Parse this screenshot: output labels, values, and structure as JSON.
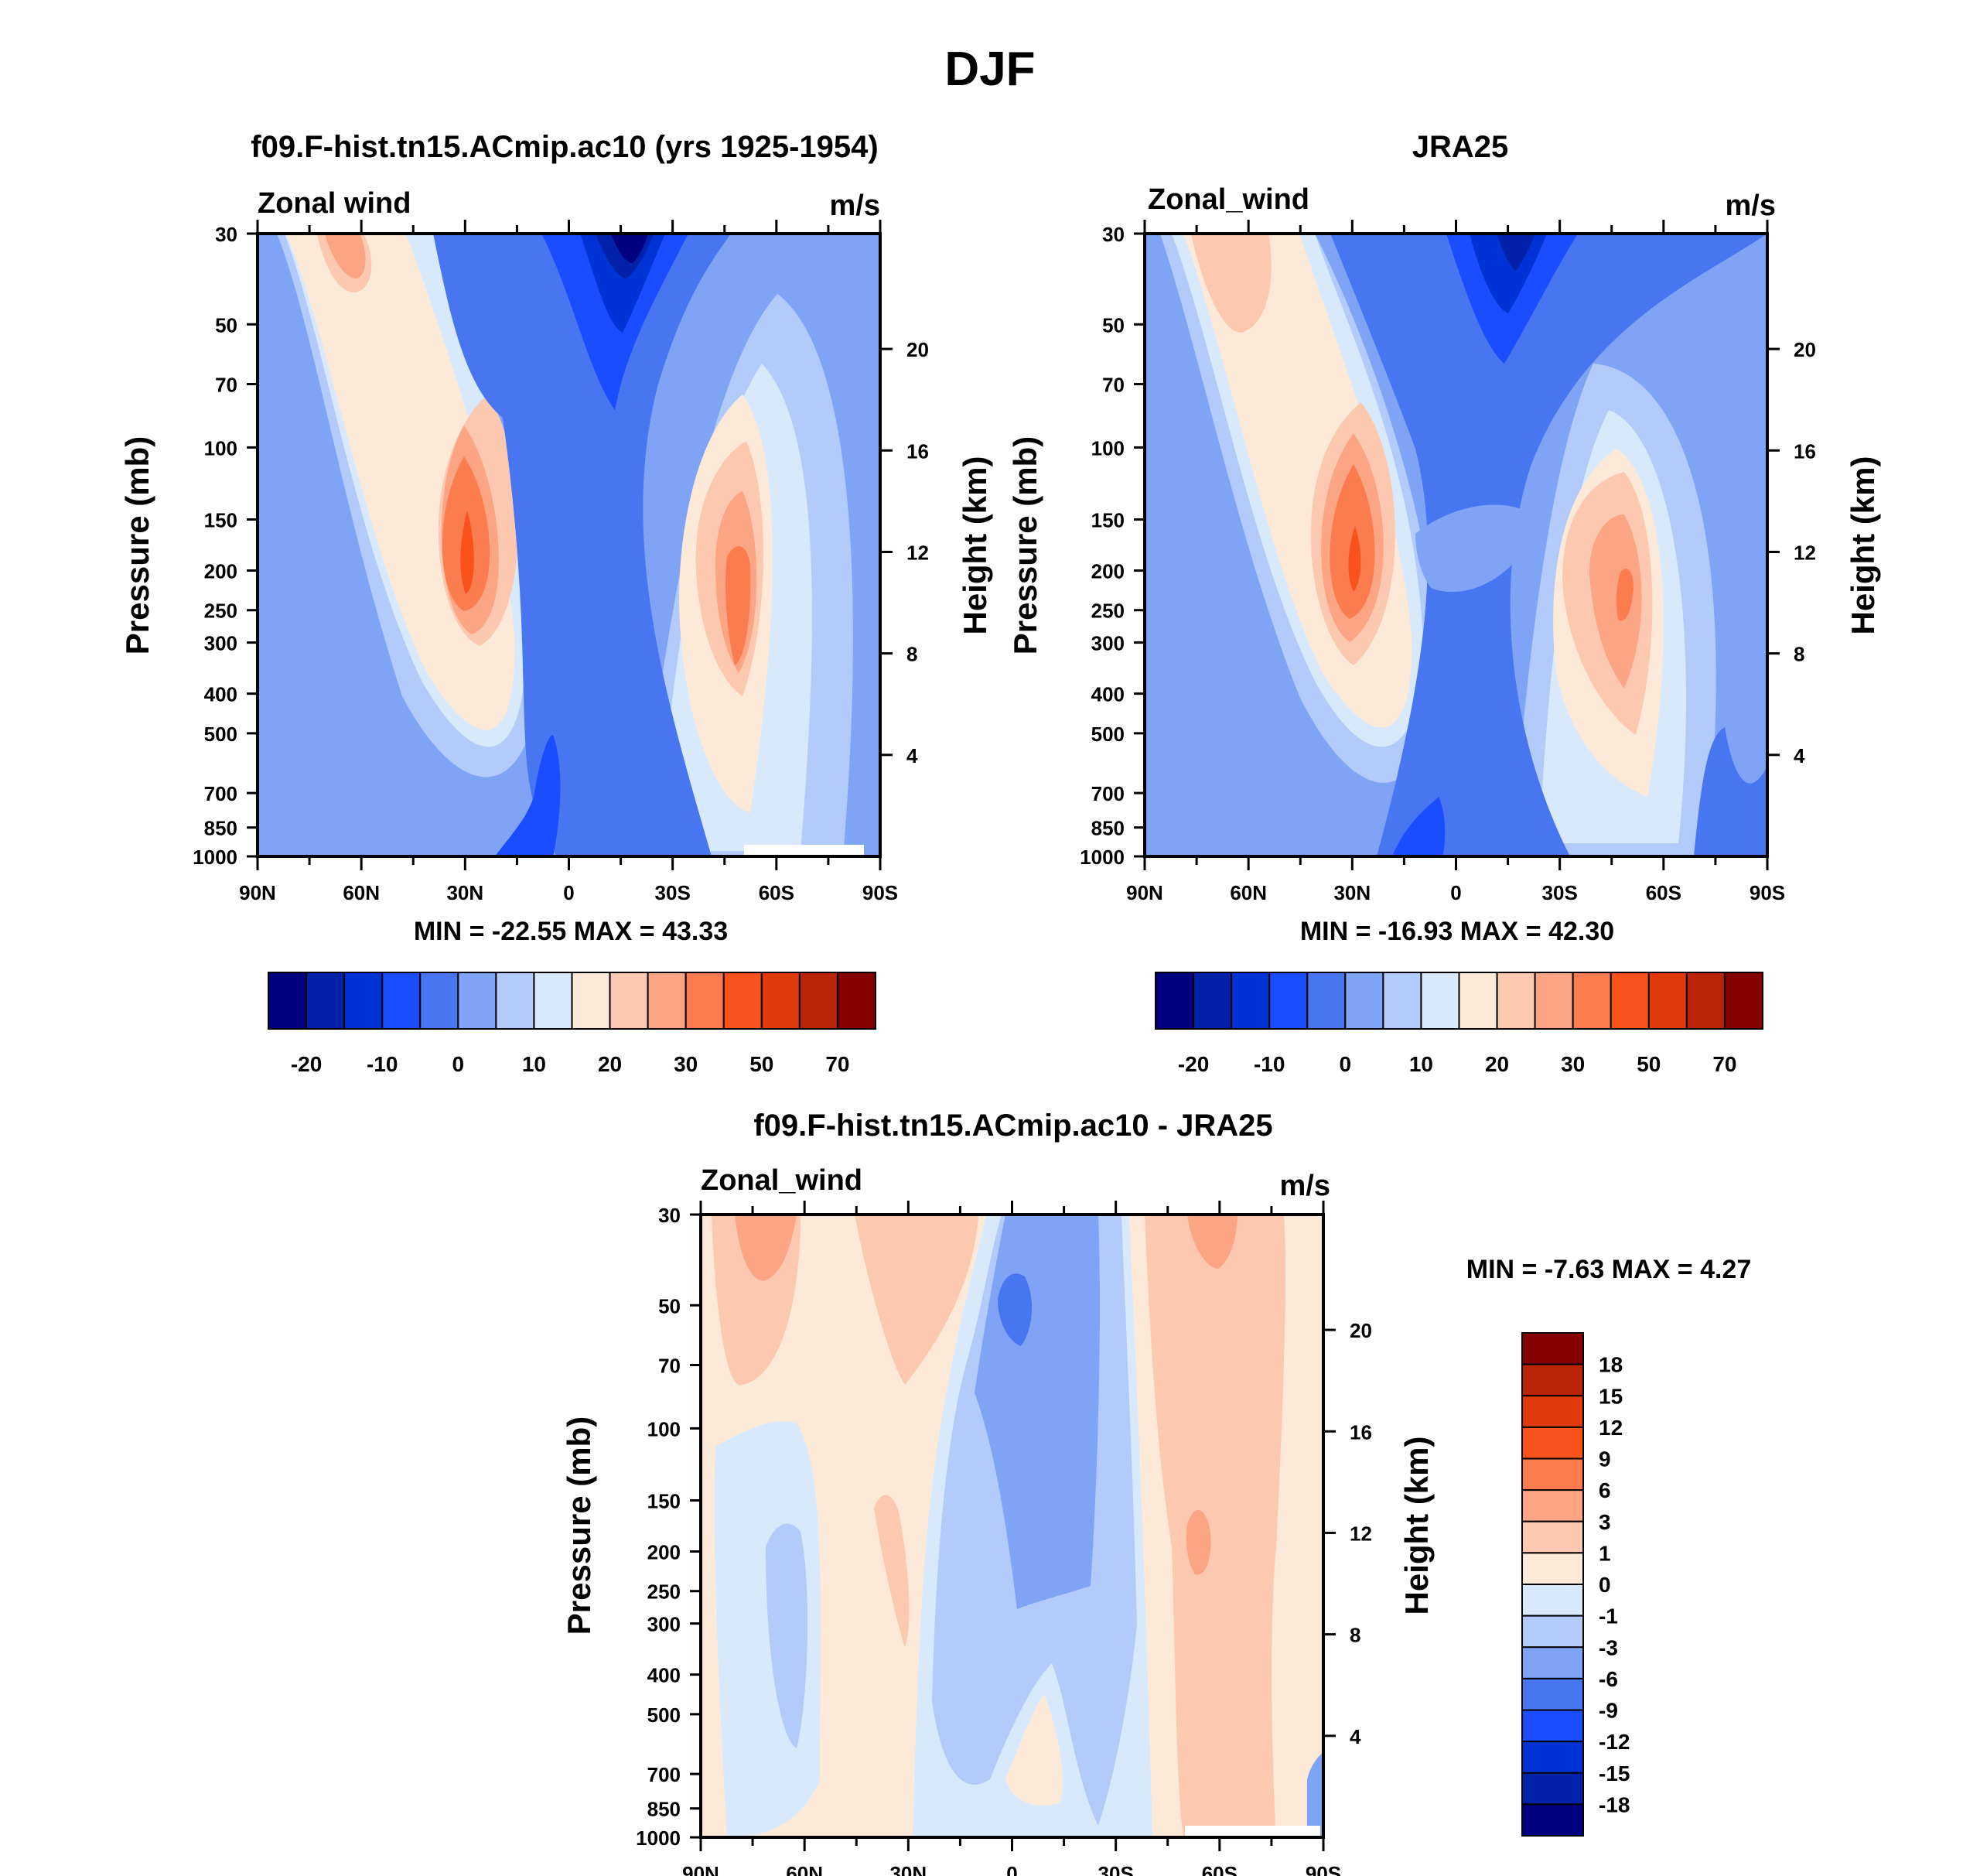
{
  "figure_title": "DJF",
  "chart_data": [
    {
      "type": "heatmap",
      "panel": "model",
      "title": "f09.F-hist.tn15.ACmip.ac10 (yrs 1925-1954)",
      "left_label": "Zonal wind",
      "right_label": "m/s",
      "ylabel": "Pressure (mb)",
      "ylabel_right": "Height (km)",
      "x_ticks": [
        "90N",
        "60N",
        "30N",
        "0",
        "30S",
        "60S",
        "90S"
      ],
      "x_range": [
        90,
        -90
      ],
      "y_ticks": [
        30,
        50,
        70,
        100,
        150,
        200,
        250,
        300,
        400,
        500,
        700,
        850,
        1000
      ],
      "y_range_mb": [
        1000,
        30
      ],
      "height_ticks_km": [
        4,
        8,
        12,
        16,
        20
      ],
      "min_max_text": "MIN = -22.55  MAX =  43.33",
      "min": -22.55,
      "max": 43.33,
      "colorbar_labels": [
        "-20",
        "-10",
        "0",
        "10",
        "20",
        "30",
        "50",
        "70"
      ],
      "features": [
        {
          "kind": "jet",
          "lat": 30,
          "p_mb": 200,
          "value": 43.33
        },
        {
          "kind": "jet",
          "lat": -48,
          "p_mb": 220,
          "value": 38
        },
        {
          "kind": "easterly",
          "lat": -15,
          "p_mb": 30,
          "value": -22.55
        }
      ]
    },
    {
      "type": "heatmap",
      "panel": "obs",
      "title": "JRA25",
      "left_label": "Zonal_wind",
      "right_label": "m/s",
      "ylabel": "Pressure (mb)",
      "ylabel_right": "Height (km)",
      "x_ticks": [
        "90N",
        "60N",
        "30N",
        "0",
        "30S",
        "60S",
        "90S"
      ],
      "x_range": [
        90,
        -90
      ],
      "y_ticks": [
        30,
        50,
        70,
        100,
        150,
        200,
        250,
        300,
        400,
        500,
        700,
        850,
        1000
      ],
      "y_range_mb": [
        1000,
        30
      ],
      "height_ticks_km": [
        4,
        8,
        12,
        16,
        20
      ],
      "min_max_text": "MIN = -16.93  MAX =  42.30",
      "min": -16.93,
      "max": 42.3,
      "colorbar_labels": [
        "-20",
        "-10",
        "0",
        "10",
        "20",
        "30",
        "50",
        "70"
      ],
      "features": [
        {
          "kind": "jet",
          "lat": 30,
          "p_mb": 200,
          "value": 42.3
        },
        {
          "kind": "jet",
          "lat": -48,
          "p_mb": 260,
          "value": 36
        },
        {
          "kind": "easterly",
          "lat": -15,
          "p_mb": 30,
          "value": -16.93
        }
      ]
    },
    {
      "type": "heatmap",
      "panel": "difference",
      "title": "f09.F-hist.tn15.ACmip.ac10 - JRA25",
      "left_label": "Zonal_wind",
      "right_label": "m/s",
      "ylabel": "Pressure (mb)",
      "ylabel_right": "Height (km)",
      "x_ticks": [
        "90N",
        "60N",
        "30N",
        "0",
        "30S",
        "60S",
        "90S"
      ],
      "x_range": [
        90,
        -90
      ],
      "y_ticks": [
        30,
        50,
        70,
        100,
        150,
        200,
        250,
        300,
        400,
        500,
        700,
        850,
        1000
      ],
      "y_range_mb": [
        1000,
        30
      ],
      "height_ticks_km": [
        4,
        8,
        12,
        16,
        20
      ],
      "min_max_text": "MIN =  -7.63  MAX =   4.27",
      "min": -7.63,
      "max": 4.27,
      "colorbar_labels": [
        "18",
        "15",
        "12",
        "9",
        "6",
        "3",
        "1",
        "0",
        "-1",
        "-3",
        "-6",
        "-9",
        "-12",
        "-15",
        "-18"
      ]
    }
  ],
  "colors": {
    "abs_fills": [
      "#000080",
      "#0021a8",
      "#0033d6",
      "#1a4dff",
      "#4876f0",
      "#80a4f5",
      "#b3cbfa",
      "#d9e9fc",
      "#fde9d8",
      "#fcc9b0",
      "#fba585",
      "#fb7c4e",
      "#fa521d",
      "#e03a0c",
      "#b82405",
      "#850000"
    ],
    "diff_fills": [
      "#850000",
      "#b82405",
      "#e03a0c",
      "#fa521d",
      "#fb7c4e",
      "#fba585",
      "#fcc9b0",
      "#fde9d8",
      "#d9e9fc",
      "#b3cbfa",
      "#80a4f5",
      "#4876f0",
      "#1a4dff",
      "#0033d6",
      "#0021a8",
      "#000080"
    ]
  }
}
